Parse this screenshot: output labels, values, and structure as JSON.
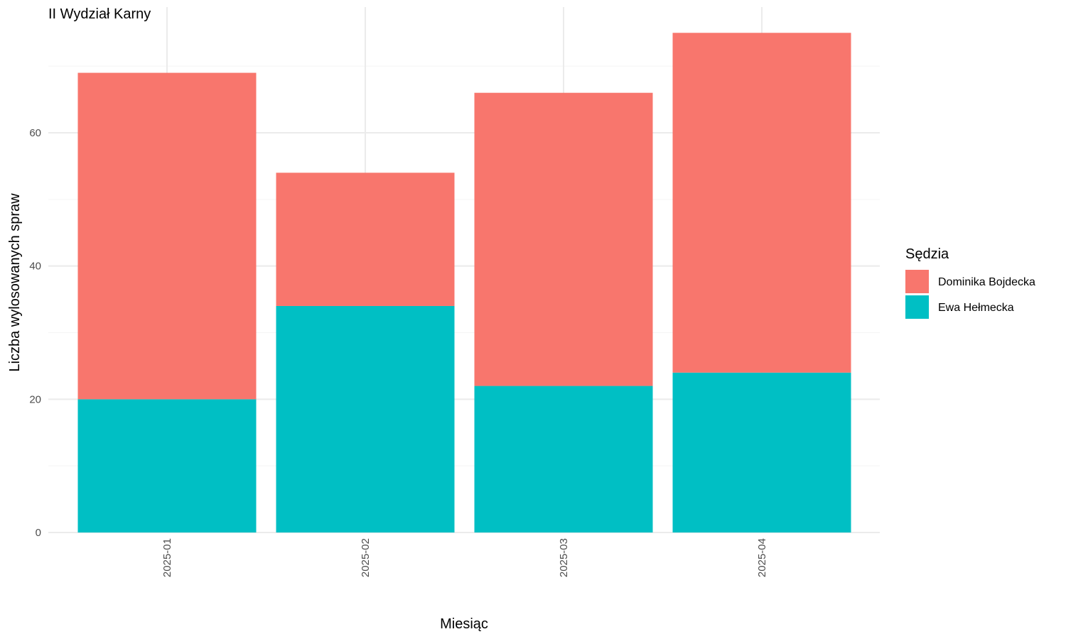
{
  "chart_data": {
    "type": "bar",
    "stacked": true,
    "title": "II Wydział Karny",
    "xlabel": "Miesiąc",
    "ylabel": "Liczba wylosowanych spraw",
    "categories": [
      "2025-01",
      "2025-02",
      "2025-03",
      "2025-04"
    ],
    "series": [
      {
        "name": "Ewa Hełmecka",
        "values": [
          20,
          34,
          22,
          24
        ],
        "color": "#00BFC4"
      },
      {
        "name": "Dominika Bojdecka",
        "values": [
          49,
          20,
          44,
          51
        ],
        "color": "#F8766D"
      }
    ],
    "ylim": [
      0,
      75
    ],
    "yticks": [
      0,
      20,
      40,
      60
    ],
    "grid": true,
    "legend": {
      "title": "Sędzia",
      "placement": "right",
      "entries": [
        "Dominika Bojdecka",
        "Ewa Hełmecka"
      ]
    }
  }
}
